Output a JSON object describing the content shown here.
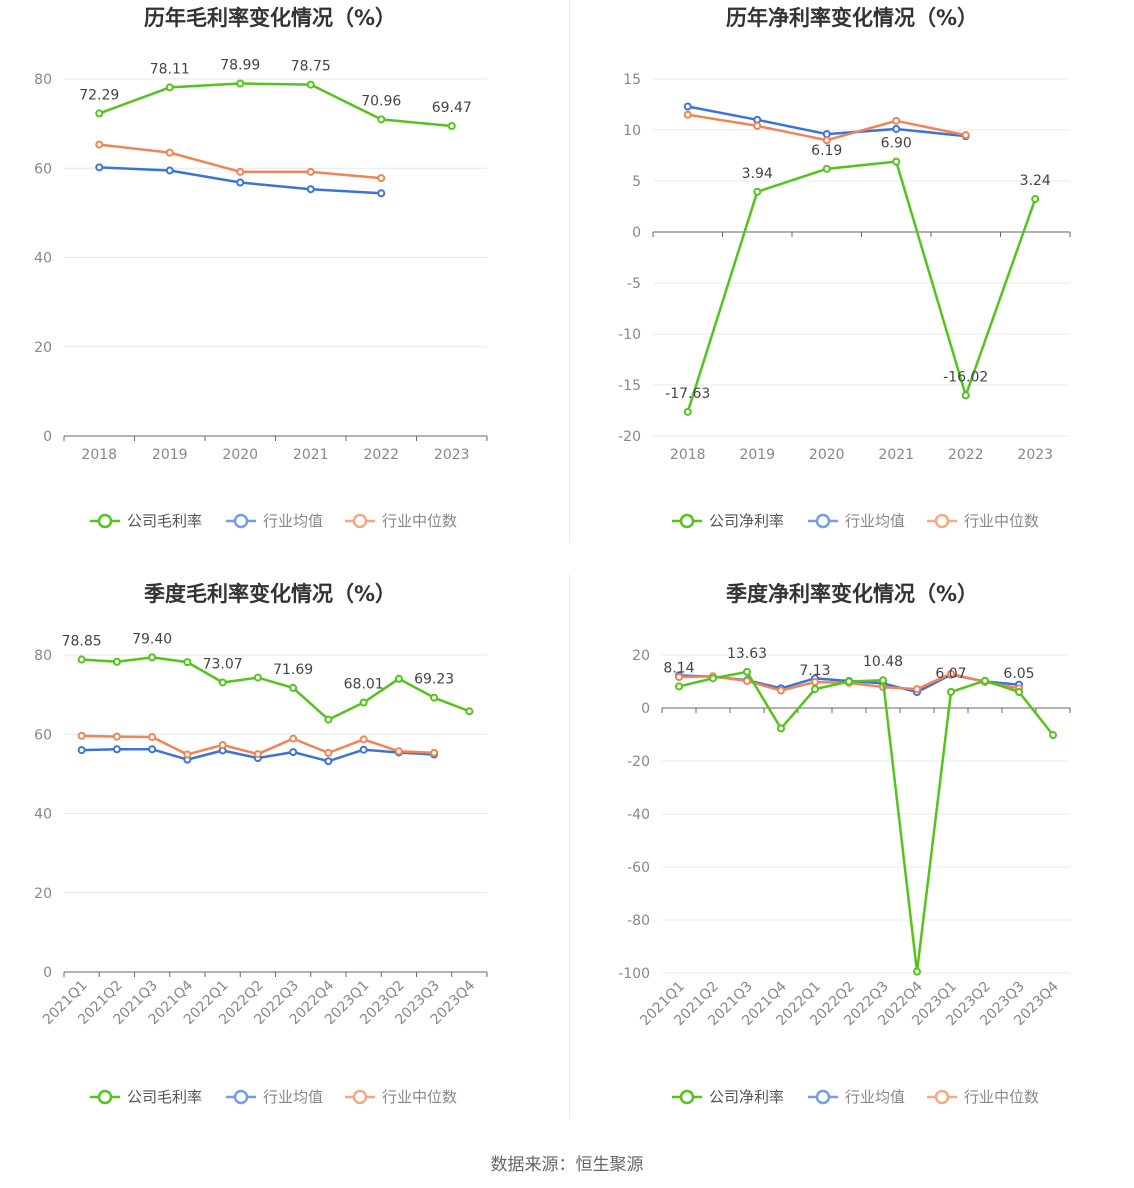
{
  "source": "数据来源：恒生聚源",
  "colors": {
    "company": "#52c41a",
    "avg": "#3b73d9",
    "median": "#f08454",
    "grid": "#e6e8f2",
    "axis": "#666666"
  },
  "chart_data": [
    {
      "type": "line",
      "title": "历年毛利率变化情况（%）",
      "categories": [
        "2018",
        "2019",
        "2020",
        "2021",
        "2022",
        "2023"
      ],
      "yticks": [
        "0",
        "20",
        "40",
        "60",
        "80"
      ],
      "ylim": [
        0,
        80
      ],
      "legend_position": "bottom",
      "series": [
        {
          "name": "公司毛利率",
          "key": "company",
          "values": [
            72.29,
            78.11,
            78.99,
            78.75,
            70.96,
            69.47
          ],
          "labels": [
            "72.29",
            "78.11",
            "78.99",
            "78.75",
            "70.96",
            "69.47"
          ]
        },
        {
          "name": "行业均值",
          "key": "avg",
          "values": [
            60.2,
            59.5,
            56.8,
            55.3,
            54.4,
            null
          ]
        },
        {
          "name": "行业中位数",
          "key": "median",
          "values": [
            65.3,
            63.5,
            59.2,
            59.2,
            57.8,
            null
          ]
        }
      ]
    },
    {
      "type": "line",
      "title": "历年净利率变化情况（%）",
      "categories": [
        "2018",
        "2019",
        "2020",
        "2021",
        "2022",
        "2023"
      ],
      "yticks": [
        "-20",
        "-15",
        "-10",
        "-5",
        "0",
        "5",
        "10",
        "15"
      ],
      "ylim": [
        -20,
        15
      ],
      "legend_position": "bottom",
      "series": [
        {
          "name": "公司净利率",
          "key": "company",
          "values": [
            -17.63,
            3.94,
            6.19,
            6.9,
            -16.02,
            3.24
          ],
          "labels": [
            "-17.63",
            "3.94",
            "6.19",
            "6.90",
            "-16.02",
            "3.24"
          ]
        },
        {
          "name": "行业均值",
          "key": "avg",
          "values": [
            12.3,
            11.0,
            9.6,
            10.1,
            9.4,
            null
          ]
        },
        {
          "name": "行业中位数",
          "key": "median",
          "values": [
            11.5,
            10.4,
            9.0,
            10.9,
            9.5,
            null
          ]
        }
      ]
    },
    {
      "type": "line",
      "title": "季度毛利率变化情况（%）",
      "categories": [
        "2021Q1",
        "2021Q2",
        "2021Q3",
        "2021Q4",
        "2022Q1",
        "2022Q2",
        "2022Q3",
        "2022Q4",
        "2023Q1",
        "2023Q2",
        "2023Q3",
        "2023Q4"
      ],
      "yticks": [
        "0",
        "20",
        "40",
        "60",
        "80"
      ],
      "ylim": [
        0,
        80
      ],
      "legend_position": "bottom",
      "series": [
        {
          "name": "公司毛利率",
          "key": "company",
          "values": [
            78.85,
            78.3,
            79.4,
            78.2,
            73.07,
            74.3,
            71.69,
            63.7,
            68.01,
            74.0,
            69.23,
            65.8
          ],
          "labels": [
            "78.85",
            "",
            "79.40",
            "",
            "73.07",
            "",
            "71.69",
            "",
            "68.01",
            "",
            "69.23",
            ""
          ]
        },
        {
          "name": "行业均值",
          "key": "avg",
          "values": [
            56.0,
            56.2,
            56.2,
            53.6,
            55.9,
            54.0,
            55.5,
            53.2,
            56.1,
            55.4,
            54.9,
            null
          ]
        },
        {
          "name": "行业中位数",
          "key": "median",
          "values": [
            59.6,
            59.4,
            59.3,
            54.9,
            57.3,
            55.0,
            58.9,
            55.3,
            58.7,
            55.7,
            55.3,
            null
          ]
        }
      ]
    },
    {
      "type": "line",
      "title": "季度净利率变化情况（%）",
      "categories": [
        "2021Q1",
        "2021Q2",
        "2021Q3",
        "2021Q4",
        "2022Q1",
        "2022Q2",
        "2022Q3",
        "2022Q4",
        "2023Q1",
        "2023Q2",
        "2023Q3",
        "2023Q4"
      ],
      "yticks": [
        "-100",
        "-80",
        "-60",
        "-40",
        "-20",
        "0",
        "20"
      ],
      "ylim": [
        -100,
        20
      ],
      "legend_position": "bottom",
      "series": [
        {
          "name": "公司净利率",
          "key": "company",
          "values": [
            8.14,
            11.2,
            13.63,
            -7.7,
            7.13,
            10.0,
            10.48,
            -99.5,
            6.07,
            10.3,
            6.05,
            -10.2
          ],
          "labels": [
            "8.14",
            "",
            "13.63",
            "",
            "7.13",
            "",
            "10.48",
            "",
            "6.07",
            "",
            "6.05",
            ""
          ]
        },
        {
          "name": "行业均值",
          "key": "avg",
          "values": [
            12.3,
            11.8,
            10.5,
            7.4,
            11.2,
            10.2,
            9.3,
            6.0,
            12.6,
            10.0,
            8.8,
            null
          ]
        },
        {
          "name": "行业中位数",
          "key": "median",
          "values": [
            11.7,
            12.0,
            10.2,
            6.6,
            9.8,
            9.5,
            7.9,
            7.1,
            12.9,
            9.8,
            7.4,
            null
          ]
        }
      ]
    }
  ]
}
